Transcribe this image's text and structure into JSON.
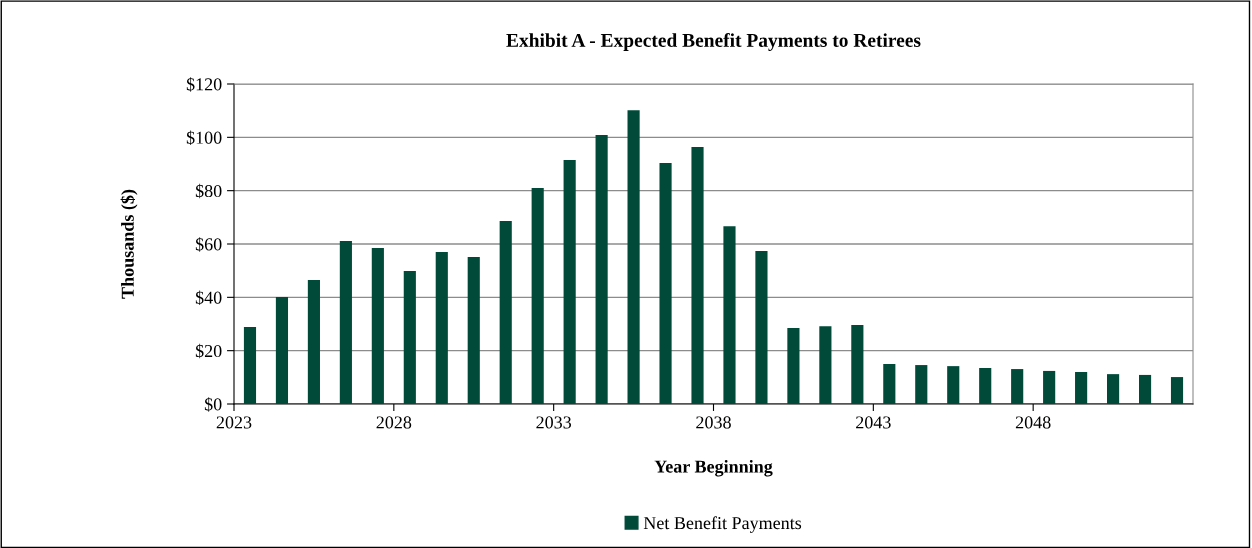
{
  "chart_data": {
    "type": "bar",
    "title": "Exhibit A - Expected Benefit Payments to Retirees",
    "xlabel": "Year Beginning",
    "ylabel": "Thousands ($)",
    "categories": [
      "2023",
      null,
      null,
      null,
      null,
      "2028",
      null,
      null,
      null,
      null,
      "2033",
      null,
      null,
      null,
      null,
      "2038",
      null,
      null,
      null,
      null,
      "2043",
      null,
      null,
      null,
      null,
      "2048",
      null,
      null,
      null,
      null
    ],
    "series": [
      {
        "name": "Net Benefit Payments",
        "color": "#014a3a",
        "values": [
          28.9,
          40.1,
          46.5,
          61.1,
          58.5,
          49.9,
          57.0,
          55.1,
          68.6,
          81,
          91.5,
          100.9,
          110.2,
          90.4,
          96.4,
          66.7,
          57.4,
          28.5,
          29.2,
          29.6,
          15,
          14.6,
          14.2,
          13.5,
          13.1,
          12.4,
          12,
          11.2,
          10.9,
          10.1
        ]
      }
    ],
    "ylim": [
      0,
      120
    ],
    "yticks": [
      {
        "value": 0,
        "label": "$0"
      },
      {
        "value": 20,
        "label": "$20"
      },
      {
        "value": 40,
        "label": "$40"
      },
      {
        "value": 60,
        "label": "$60"
      },
      {
        "value": 80,
        "label": "$80"
      },
      {
        "value": 100,
        "label": "$100"
      },
      {
        "value": 120,
        "label": "$120"
      }
    ],
    "grid": "y",
    "legend": "bottom"
  }
}
